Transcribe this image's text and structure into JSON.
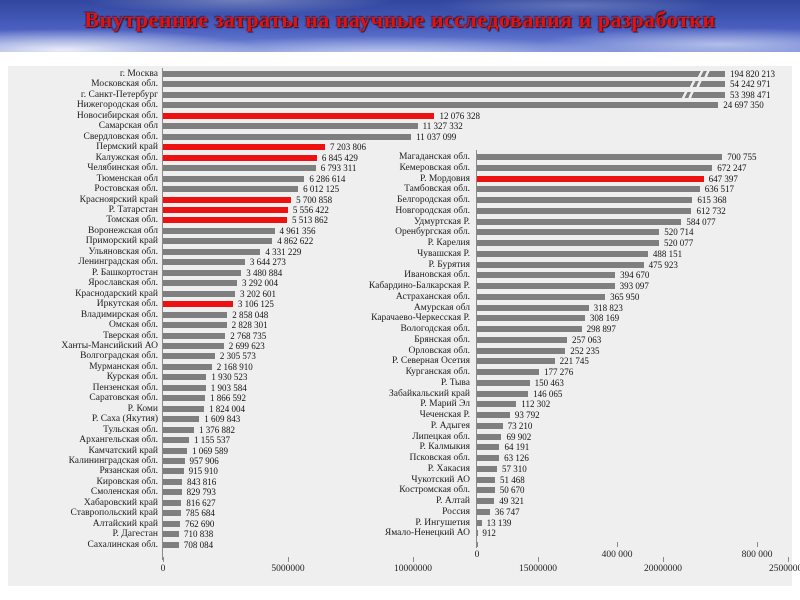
{
  "header": {
    "title": "Внутренние затраты на научные исследования и разработки",
    "title_color": "#e8100c",
    "sky_color": "#4a5fc0"
  },
  "panel": {
    "background": "#efefef"
  },
  "chart_data": [
    {
      "type": "bar",
      "orientation": "horizontal",
      "title": "",
      "xlabel": "",
      "ylabel": "",
      "legend": "none",
      "grid": false,
      "bar_color": "#7f7f7f",
      "highlight_color": "#ee1111",
      "axis_max": 25000000,
      "axis_ticks": [
        "0",
        "5000000",
        "10000000",
        "15000000",
        "20000000",
        "25000000"
      ],
      "note": "top three bars exceed axis and are clipped with break marks",
      "rows": [
        {
          "region": "г. Москва",
          "value": 194820213,
          "label": "194 820 213",
          "highlight": false
        },
        {
          "region": "Московская обл.",
          "value": 54242971,
          "label": "54 242 971",
          "highlight": false
        },
        {
          "region": "г. Санкт-Петербург",
          "value": 53398471,
          "label": "53 398 471",
          "highlight": false
        },
        {
          "region": "Нижегородская обл.",
          "value": 24697350,
          "label": "24 697 350",
          "highlight": false
        },
        {
          "region": "Новосибирская обл.",
          "value": 12076328,
          "label": "12 076 328",
          "highlight": true
        },
        {
          "region": "Самарская обл",
          "value": 11327332,
          "label": "11 327 332",
          "highlight": false
        },
        {
          "region": "Свердловская обл.",
          "value": 11037099,
          "label": "11 037 099",
          "highlight": false
        },
        {
          "region": "Пермский край",
          "value": 7203806,
          "label": "7 203 806",
          "highlight": true
        },
        {
          "region": "Калужская обл.",
          "value": 6845429,
          "label": "6 845 429",
          "highlight": true
        },
        {
          "region": "Челябинская обл.",
          "value": 6793311,
          "label": "6 793 311",
          "highlight": false
        },
        {
          "region": "Тюменская обл",
          "value": 6286614,
          "label": "6 286 614",
          "highlight": false
        },
        {
          "region": "Ростовская обл.",
          "value": 6012125,
          "label": "6 012 125",
          "highlight": false
        },
        {
          "region": "Красноярский край",
          "value": 5700858,
          "label": "5 700 858",
          "highlight": true
        },
        {
          "region": "Р. Татарстан",
          "value": 5556422,
          "label": "5 556 422",
          "highlight": true
        },
        {
          "region": "Томская обл.",
          "value": 5513862,
          "label": "5 513 862",
          "highlight": true
        },
        {
          "region": "Воронежская обл",
          "value": 4961356,
          "label": "4 961 356",
          "highlight": false
        },
        {
          "region": "Приморский край",
          "value": 4862622,
          "label": "4 862 622",
          "highlight": false
        },
        {
          "region": "Ульяновская обл.",
          "value": 4331229,
          "label": "4 331 229",
          "highlight": false
        },
        {
          "region": "Ленинградская обл.",
          "value": 3644273,
          "label": "3 644 273",
          "highlight": false
        },
        {
          "region": "Р. Башкортостан",
          "value": 3480884,
          "label": "3 480 884",
          "highlight": false
        },
        {
          "region": "Ярославская обл.",
          "value": 3292004,
          "label": "3 292 004",
          "highlight": false
        },
        {
          "region": "Краснодарский край",
          "value": 3202601,
          "label": "3 202 601",
          "highlight": false
        },
        {
          "region": "Иркутская обл.",
          "value": 3106125,
          "label": "3 106 125",
          "highlight": true
        },
        {
          "region": "Владимирская обл.",
          "value": 2858048,
          "label": "2 858 048",
          "highlight": false
        },
        {
          "region": "Омская обл.",
          "value": 2828301,
          "label": "2 828 301",
          "highlight": false
        },
        {
          "region": "Тверская обл.",
          "value": 2768735,
          "label": "2 768 735",
          "highlight": false
        },
        {
          "region": "Ханты-Мансийский АО",
          "value": 2699623,
          "label": "2 699 623",
          "highlight": false
        },
        {
          "region": "Волгоградская обл.",
          "value": 2305573,
          "label": "2 305 573",
          "highlight": false
        },
        {
          "region": "Мурманская обл.",
          "value": 2168910,
          "label": "2 168 910",
          "highlight": false
        },
        {
          "region": "Курская обл.",
          "value": 1930523,
          "label": "1 930 523",
          "highlight": false
        },
        {
          "region": "Пензенская обл.",
          "value": 1903584,
          "label": "1 903 584",
          "highlight": false
        },
        {
          "region": "Саратовская обл.",
          "value": 1866592,
          "label": "1 866 592",
          "highlight": false
        },
        {
          "region": "Р. Коми",
          "value": 1824004,
          "label": "1 824 004",
          "highlight": false
        },
        {
          "region": "Р. Саха (Якутия)",
          "value": 1609843,
          "label": "1 609 843",
          "highlight": false
        },
        {
          "region": "Тульская обл.",
          "value": 1376882,
          "label": "1 376 882",
          "highlight": false
        },
        {
          "region": "Архангельская обл.",
          "value": 1155537,
          "label": "1 155 537",
          "highlight": false
        },
        {
          "region": "Камчатский край",
          "value": 1069589,
          "label": "1 069 589",
          "highlight": false
        },
        {
          "region": "Калининградская обл.",
          "value": 957906,
          "label": "957 906",
          "highlight": false
        },
        {
          "region": "Рязанская обл.",
          "value": 915910,
          "label": "915 910",
          "highlight": false
        },
        {
          "region": "Кировская обл.",
          "value": 843816,
          "label": "843 816",
          "highlight": false
        },
        {
          "region": "Смоленская обл.",
          "value": 829793,
          "label": "829 793",
          "highlight": false
        },
        {
          "region": "Хабаровский край",
          "value": 816627,
          "label": "816 627",
          "highlight": false
        },
        {
          "region": "Ставропольский край",
          "value": 785684,
          "label": "785 684",
          "highlight": false
        },
        {
          "region": "Алтайский край",
          "value": 762690,
          "label": "762 690",
          "highlight": false
        },
        {
          "region": "Р. Дагестан",
          "value": 710838,
          "label": "710 838",
          "highlight": false
        },
        {
          "region": "Сахалинская обл.",
          "value": 708084,
          "label": "708 084",
          "highlight": false
        }
      ]
    },
    {
      "type": "bar",
      "orientation": "horizontal",
      "title": "",
      "xlabel": "",
      "ylabel": "",
      "legend": "none",
      "grid": false,
      "bar_color": "#7f7f7f",
      "highlight_color": "#ee1111",
      "axis_max": 800000,
      "axis_ticks": [
        "0",
        "400 000",
        "800 000"
      ],
      "rows": [
        {
          "region": "Магаданская обл.",
          "value": 700755,
          "label": "700 755",
          "highlight": false
        },
        {
          "region": "Кемеровская обл.",
          "value": 672247,
          "label": "672 247",
          "highlight": false
        },
        {
          "region": "Р. Мордовия",
          "value": 647397,
          "label": "647 397",
          "highlight": true
        },
        {
          "region": "Тамбовская обл.",
          "value": 636517,
          "label": "636 517",
          "highlight": false
        },
        {
          "region": "Белгородская обл.",
          "value": 615368,
          "label": "615 368",
          "highlight": false
        },
        {
          "region": "Новгородская обл.",
          "value": 612732,
          "label": "612 732",
          "highlight": false
        },
        {
          "region": "Удмуртская Р.",
          "value": 584077,
          "label": "584 077",
          "highlight": false
        },
        {
          "region": "Оренбургская обл.",
          "value": 520714,
          "label": "520 714",
          "highlight": false
        },
        {
          "region": "Р. Карелия",
          "value": 520077,
          "label": "520 077",
          "highlight": false
        },
        {
          "region": "Чувашская Р.",
          "value": 488151,
          "label": "488 151",
          "highlight": false
        },
        {
          "region": "Р. Бурятия",
          "value": 475923,
          "label": "475 923",
          "highlight": false
        },
        {
          "region": "Ивановская обл.",
          "value": 394670,
          "label": "394 670",
          "highlight": false
        },
        {
          "region": "Кабардино-Балкарская Р.",
          "value": 393097,
          "label": "393 097",
          "highlight": false
        },
        {
          "region": "Астраханская обл.",
          "value": 365950,
          "label": "365 950",
          "highlight": false
        },
        {
          "region": "Амурская обл",
          "value": 318823,
          "label": "318 823",
          "highlight": false
        },
        {
          "region": "Карачаево-Черкесская Р.",
          "value": 308169,
          "label": "308 169",
          "highlight": false
        },
        {
          "region": "Вологодская обл.",
          "value": 298897,
          "label": "298 897",
          "highlight": false
        },
        {
          "region": "Брянская обл.",
          "value": 257063,
          "label": "257 063",
          "highlight": false
        },
        {
          "region": "Орловская обл.",
          "value": 252235,
          "label": "252 235",
          "highlight": false
        },
        {
          "region": "Р. Северная Осетия",
          "value": 221745,
          "label": "221 745",
          "highlight": false
        },
        {
          "region": "Курганская обл.",
          "value": 177276,
          "label": "177 276",
          "highlight": false
        },
        {
          "region": "Р. Тыва",
          "value": 150463,
          "label": "150 463",
          "highlight": false
        },
        {
          "region": "Забайкальский край",
          "value": 146065,
          "label": "146 065",
          "highlight": false
        },
        {
          "region": "Р. Марий Эл",
          "value": 112302,
          "label": "112 302",
          "highlight": false
        },
        {
          "region": "Чеченская Р.",
          "value": 93792,
          "label": "93 792",
          "highlight": false
        },
        {
          "region": "Р. Адыгея",
          "value": 73210,
          "label": "73 210",
          "highlight": false
        },
        {
          "region": "Липецкая обл.",
          "value": 69902,
          "label": "69 902",
          "highlight": false
        },
        {
          "region": "Р. Калмыкия",
          "value": 64191,
          "label": "64 191",
          "highlight": false
        },
        {
          "region": "Псковская обл.",
          "value": 63126,
          "label": "63 126",
          "highlight": false
        },
        {
          "region": "Р. Хакасия",
          "value": 57310,
          "label": "57 310",
          "highlight": false
        },
        {
          "region": "Чукотский АО",
          "value": 51468,
          "label": "51 468",
          "highlight": false
        },
        {
          "region": "Костромская обл.",
          "value": 50670,
          "label": "50 670",
          "highlight": false
        },
        {
          "region": "Р. Алтай",
          "value": 49321,
          "label": "49 321",
          "highlight": false
        },
        {
          "region": "Россия",
          "value": 36747,
          "label": "36 747",
          "highlight": false
        },
        {
          "region": "Р. Ингушетия",
          "value": 13139,
          "label": "13 139",
          "highlight": false
        },
        {
          "region": "Ямало-Ненецкий АО",
          "value": 912,
          "label": "912",
          "highlight": false
        }
      ]
    }
  ]
}
